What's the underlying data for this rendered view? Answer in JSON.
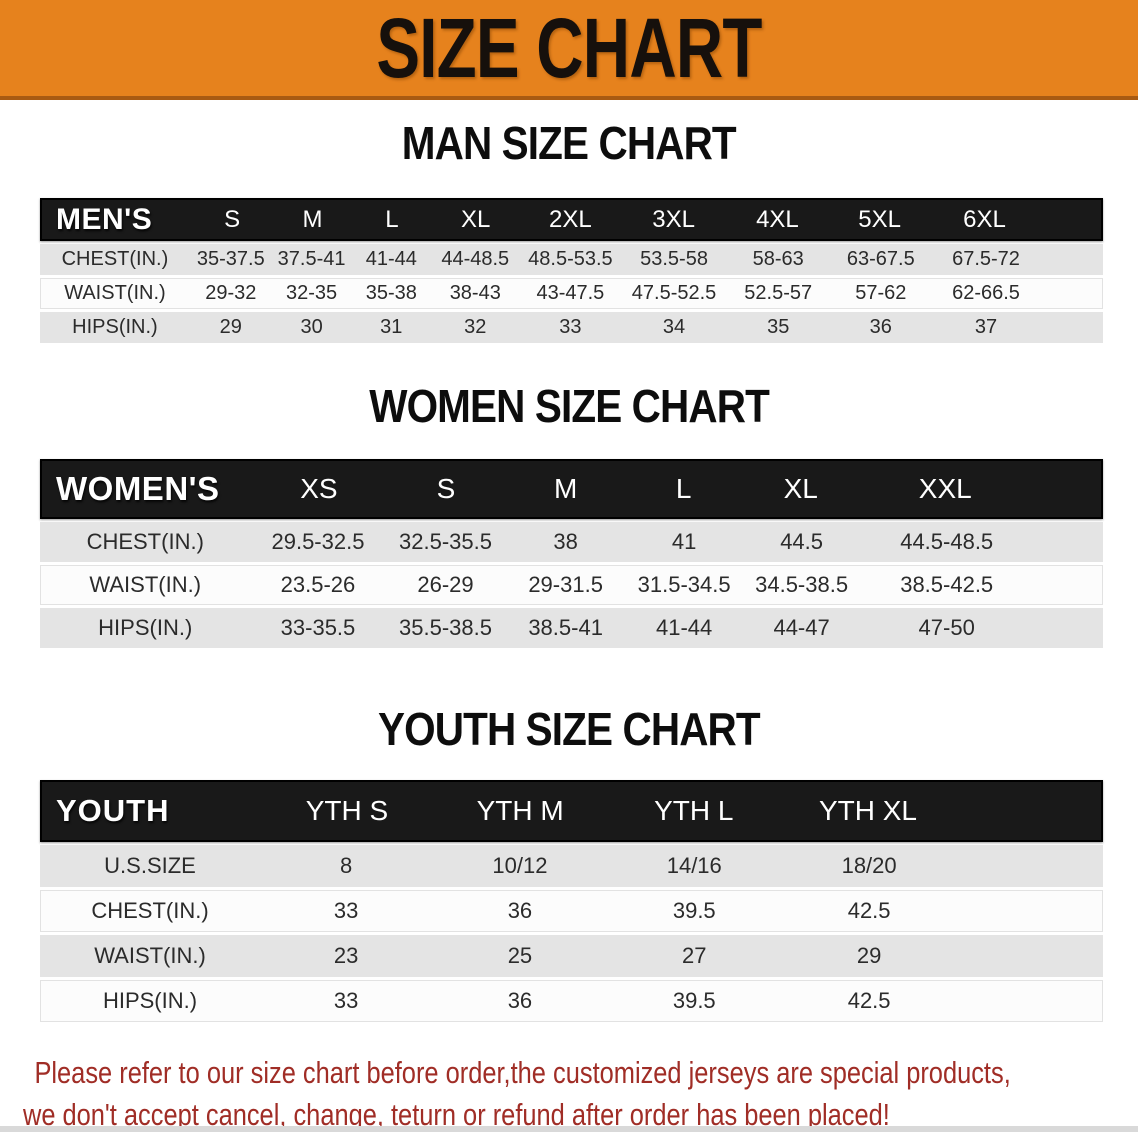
{
  "banner": {
    "title": "SIZE CHART"
  },
  "colors": {
    "banner_background": "#e6821d",
    "banner_border": "#a85a12",
    "table_header_bar": "#191919",
    "row_gray": "#e4e4e4",
    "row_white": "#fcfcfc",
    "disclaimer_red": "#a02d26"
  },
  "sections": {
    "men": {
      "title": "MAN SIZE CHART",
      "header": [
        "MEN'S",
        "S",
        "M",
        "L",
        "XL",
        "2XL",
        "3XL",
        "4XL",
        "5XL",
        "6XL"
      ],
      "rows": [
        {
          "label": "CHEST(IN.)",
          "cells": [
            "35-37.5",
            "37.5-41",
            "41-44",
            "44-48.5",
            "48.5-53.5",
            "53.5-58",
            "58-63",
            "63-67.5",
            "67.5-72"
          ]
        },
        {
          "label": "WAIST(IN.)",
          "cells": [
            "29-32",
            "32-35",
            "35-38",
            "38-43",
            "43-47.5",
            "47.5-52.5",
            "52.5-57",
            "57-62",
            "62-66.5"
          ]
        },
        {
          "label": "HIPS(IN.)",
          "cells": [
            "29",
            "30",
            "31",
            "32",
            "33",
            "34",
            "35",
            "36",
            "37"
          ]
        }
      ]
    },
    "women": {
      "title": "WOMEN SIZE CHART",
      "header": [
        "WOMEN'S",
        "XS",
        "S",
        "M",
        "L",
        "XL",
        "XXL"
      ],
      "rows": [
        {
          "label": "CHEST(IN.)",
          "cells": [
            "29.5-32.5",
            "32.5-35.5",
            "38",
            "41",
            "44.5",
            "44.5-48.5"
          ]
        },
        {
          "label": "WAIST(IN.)",
          "cells": [
            "23.5-26",
            "26-29",
            "29-31.5",
            "31.5-34.5",
            "34.5-38.5",
            "38.5-42.5"
          ]
        },
        {
          "label": "HIPS(IN.)",
          "cells": [
            "33-35.5",
            "35.5-38.5",
            "38.5-41",
            "41-44",
            "44-47",
            "47-50"
          ]
        }
      ]
    },
    "youth": {
      "title": "YOUTH SIZE CHART",
      "header": [
        "YOUTH",
        "YTH S",
        "YTH M",
        "YTH L",
        "YTH XL"
      ],
      "rows": [
        {
          "label": "U.S.SIZE",
          "cells": [
            "8",
            "10/12",
            "14/16",
            "18/20"
          ]
        },
        {
          "label": "CHEST(IN.)",
          "cells": [
            "33",
            "36",
            "39.5",
            "42.5"
          ]
        },
        {
          "label": "WAIST(IN.)",
          "cells": [
            "23",
            "25",
            "27",
            "29"
          ]
        },
        {
          "label": "HIPS(IN.)",
          "cells": [
            "33",
            "36",
            "39.5",
            "42.5"
          ]
        }
      ]
    }
  },
  "disclaimer": {
    "line1": "Please refer to our size chart before order,the customized jerseys are special products,",
    "line2": "we don't accept cancel, change, teturn or refund after order has been placed!"
  }
}
